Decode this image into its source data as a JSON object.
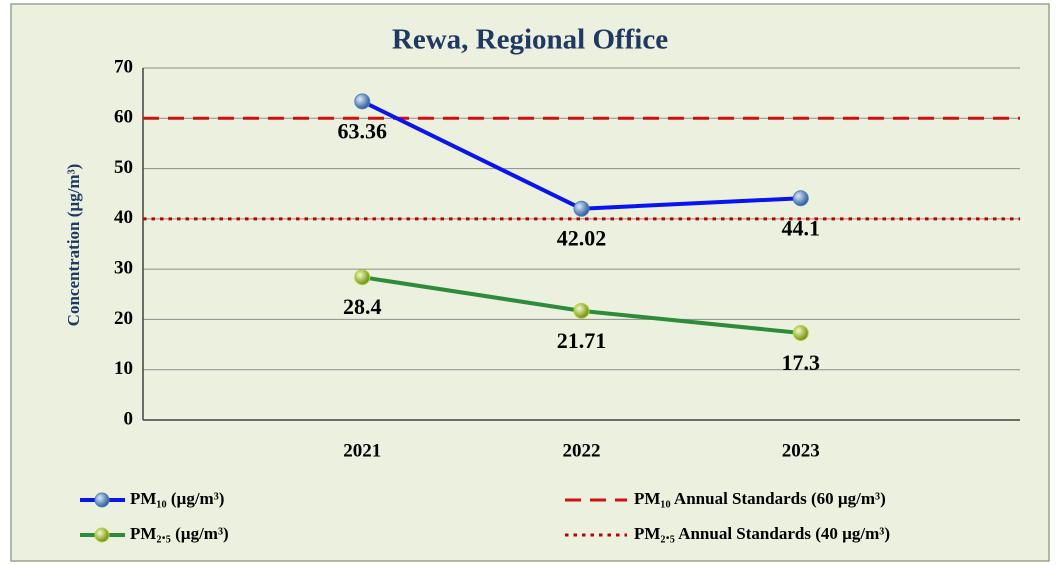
{
  "chart_data": {
    "type": "line",
    "title": "Rewa, Regional Office",
    "y_label": "Concentration (µg/m³)",
    "categories": [
      "2021",
      "2022",
      "2023"
    ],
    "series": [
      {
        "name": "PM₁₀ (µg/m³)",
        "color": "#0a14f0",
        "marker_color": "#4f81bd",
        "values": [
          63.36,
          42.02,
          44.1
        ]
      },
      {
        "name": "PM₂.₅ (µg/m³)",
        "color": "#2e8b3a",
        "marker_color": "#b5d334",
        "values": [
          28.4,
          21.71,
          17.3
        ]
      }
    ],
    "reference_lines": [
      {
        "name": "PM₁₀ Annual Standards (60 µg/m³)",
        "value": 60,
        "color": "#d01010",
        "style": "dashed"
      },
      {
        "name": "PM₂.₅ Annual Standards (40 µg/m³)",
        "value": 40,
        "color": "#c00000",
        "style": "dotted"
      }
    ],
    "ylim": [
      0,
      70
    ],
    "yticks": [
      0,
      10,
      20,
      30,
      40,
      50,
      60,
      70
    ],
    "grid": true,
    "legend": "bottom"
  }
}
